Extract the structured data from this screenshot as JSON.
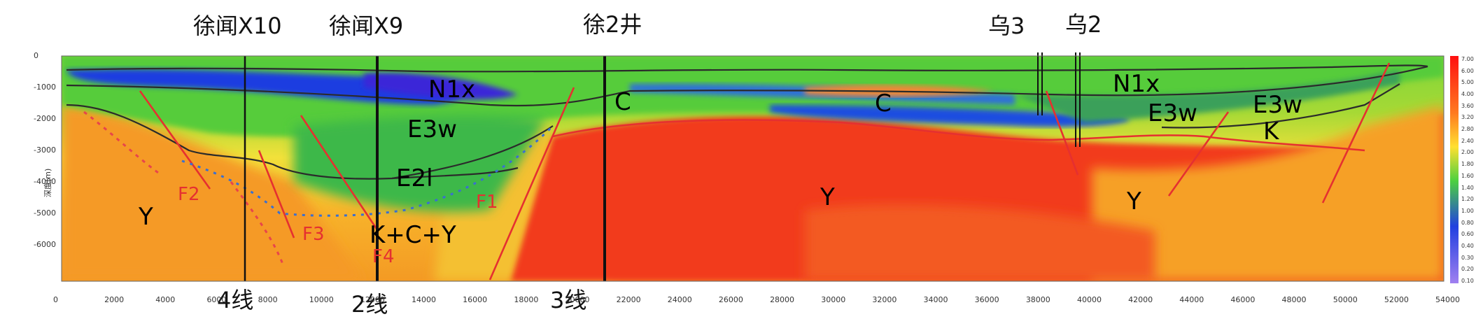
{
  "wells": [
    {
      "name": "徐闻X10"
    },
    {
      "name": "徐闻X9"
    },
    {
      "name": "徐2井"
    },
    {
      "name": "乌3"
    },
    {
      "name": "乌2"
    }
  ],
  "units": [
    "N1x",
    "C",
    "E3w",
    "E2l",
    "K+C+Y",
    "Υ",
    "Y",
    "C",
    "N1x",
    "E3w",
    "E3w",
    "K",
    "Y"
  ],
  "faults": [
    "F1",
    "F2",
    "F3",
    "F4"
  ],
  "survey_lines": [
    "4线",
    "2线",
    "3线"
  ],
  "axes": {
    "x_ticks": [
      "0",
      "2000",
      "4000",
      "6000",
      "8000",
      "10000",
      "12000",
      "14000",
      "16000",
      "18000",
      "20000",
      "22000",
      "24000",
      "26000",
      "28000",
      "30000",
      "32000",
      "34000",
      "36000",
      "38000",
      "40000",
      "42000",
      "44000",
      "46000",
      "48000",
      "50000",
      "52000",
      "54000"
    ],
    "y_ticks": [
      "0",
      "-1000",
      "-2000",
      "-3000",
      "-4000",
      "-5000",
      "-6000"
    ],
    "y_label": "深度(m)"
  },
  "colorbar_ticks": [
    "7.00",
    "6.00",
    "5.00",
    "4.00",
    "3.60",
    "3.20",
    "2.80",
    "2.40",
    "2.00",
    "1.80",
    "1.60",
    "1.40",
    "1.20",
    "1.00",
    "0.80",
    "0.60",
    "0.40",
    "0.30",
    "0.20",
    "0.10"
  ],
  "colors": {
    "fault": "#e53030",
    "horizon": "#2b2b2b",
    "deep_red": "#f02818",
    "orange": "#f7a024",
    "green": "#55cc33",
    "blue": "#1a3ee0"
  }
}
